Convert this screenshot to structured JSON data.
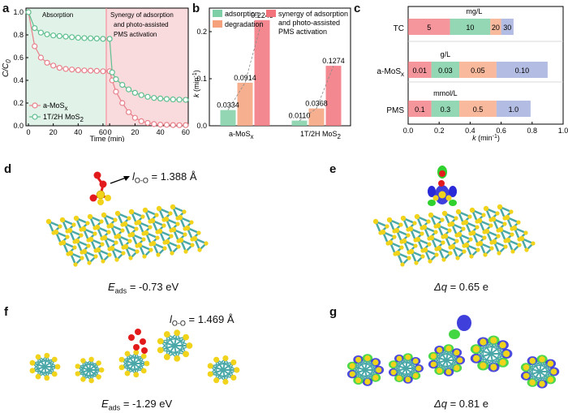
{
  "panels": {
    "a": "a",
    "b": "b",
    "c": "c",
    "d": "d",
    "e": "e",
    "f": "f",
    "g": "g"
  },
  "colors": {
    "green_series": "#5fbf8f",
    "red_series": "#e8808a",
    "green_bg": "#e1f2e8",
    "red_bg": "#f9dadd",
    "adsorption_bar": "#7fcfa6",
    "degradation_bar": "#f5a27c",
    "synergy_bar": "#f2737c",
    "mo_atom": "#4aa8a8",
    "s_atom": "#f2d31b",
    "o_atom": "#e31a1c",
    "charge_pos": "#2fd12f",
    "charge_neg": "#2a2ad8"
  },
  "chart_data": [
    {
      "type": "line",
      "xlabel": "Time (min)",
      "ylabel": "C/C",
      "ylabel_sub": "0",
      "xlim": [
        -2,
        62
      ],
      "ylim": [
        0.0,
        1.0
      ],
      "xticks": [
        "0",
        "20",
        "40",
        "60",
        "0",
        "20",
        "40",
        "60"
      ],
      "yticks": [
        "0.0",
        "0.2",
        "0.4",
        "0.6",
        "0.8",
        "1.0"
      ],
      "regions": [
        "Absorption",
        "Synergy of adsorption and photo-assisted PMS activation"
      ],
      "legend": [
        {
          "name": "a-MoS",
          "sub": "x"
        },
        {
          "name": "1T/2H MoS",
          "sub": "2"
        }
      ],
      "series": [
        {
          "name": "a-MoSx",
          "segment": 1,
          "x": [
            0,
            5,
            10,
            15,
            20,
            25,
            30,
            35,
            40,
            45,
            50,
            55,
            60
          ],
          "y": [
            1.0,
            0.7,
            0.6,
            0.555,
            0.53,
            0.51,
            0.5,
            0.495,
            0.49,
            0.487,
            0.485,
            0.483,
            0.48
          ]
        },
        {
          "name": "1T/2H MoS2",
          "segment": 1,
          "x": [
            0,
            5,
            10,
            15,
            20,
            25,
            30,
            35,
            40,
            45,
            50,
            55,
            60
          ],
          "y": [
            1.0,
            0.86,
            0.82,
            0.805,
            0.795,
            0.79,
            0.785,
            0.78,
            0.775,
            0.772,
            0.77,
            0.768,
            0.765
          ]
        },
        {
          "name": "a-MoSx",
          "segment": 2,
          "x": [
            0,
            2,
            5,
            10,
            15,
            20,
            25,
            30,
            35,
            40,
            45,
            50,
            55,
            60
          ],
          "y": [
            0.48,
            0.4,
            0.3,
            0.2,
            0.12,
            0.07,
            0.04,
            0.025,
            0.015,
            0.01,
            0.008,
            0.006,
            0.005,
            0.005
          ]
        },
        {
          "name": "1T/2H MoS2",
          "segment": 2,
          "x": [
            0,
            2,
            5,
            10,
            15,
            20,
            25,
            30,
            35,
            40,
            45,
            50,
            55,
            60
          ],
          "y": [
            0.765,
            0.47,
            0.41,
            0.36,
            0.32,
            0.29,
            0.27,
            0.255,
            0.245,
            0.24,
            0.235,
            0.232,
            0.23,
            0.228
          ]
        }
      ]
    },
    {
      "type": "bar",
      "ylabel": "k",
      "ylabel_unit": "(min",
      "ylabel_unit_sup": "-1",
      "ylim": [
        0.0,
        0.25
      ],
      "yticks": [
        "0.0",
        "0.1",
        "0.2"
      ],
      "categories": [
        {
          "name": "a-MoS",
          "sub": "x"
        },
        {
          "name": "1T/2H MoS",
          "sub": "2"
        }
      ],
      "legend": [
        "adsorption",
        "degradation",
        "synergy of adsorption and photo-assisted PMS activation"
      ],
      "series": [
        {
          "name": "adsorption",
          "values": [
            0.0334,
            0.011
          ]
        },
        {
          "name": "degradation",
          "values": [
            0.0914,
            0.0368
          ]
        },
        {
          "name": "synergy of adsorption and photo-assisted PMS activation",
          "values": [
            0.2245,
            0.1274
          ]
        }
      ],
      "data_labels": [
        [
          "0.0334",
          "0.0914",
          "0.2245"
        ],
        [
          "0.0110",
          "0.0368",
          "0.1274"
        ]
      ]
    },
    {
      "type": "bar",
      "orientation": "horizontal",
      "xlabel": "k",
      "xlabel_unit": "(min",
      "xlabel_unit_sup": "-1",
      "xlim": [
        0.0,
        1.0
      ],
      "xticks": [
        "0.0",
        "0.2",
        "0.4",
        "0.6",
        "0.8",
        "1.0"
      ],
      "rows": [
        {
          "label": "TC",
          "label_sub": "",
          "unit": "mg/L",
          "segments": [
            {
              "label": "5",
              "start": 0.0,
              "end": 0.27
            },
            {
              "label": "10",
              "start": 0.27,
              "end": 0.53
            },
            {
              "label": "20",
              "start": 0.53,
              "end": 0.6
            },
            {
              "label": "30",
              "start": 0.6,
              "end": 0.68
            }
          ]
        },
        {
          "label": "a-MoS",
          "label_sub": "x",
          "unit": "g/L",
          "segments": [
            {
              "label": "0.01",
              "start": 0.0,
              "end": 0.15
            },
            {
              "label": "0.03",
              "start": 0.15,
              "end": 0.33
            },
            {
              "label": "0.05",
              "start": 0.33,
              "end": 0.57
            },
            {
              "label": "0.10",
              "start": 0.57,
              "end": 0.9
            }
          ]
        },
        {
          "label": "PMS",
          "label_sub": "",
          "unit": "mmol/L",
          "segments": [
            {
              "label": "0.1",
              "start": 0.0,
              "end": 0.15
            },
            {
              "label": "0.3",
              "start": 0.15,
              "end": 0.33
            },
            {
              "label": "0.5",
              "start": 0.33,
              "end": 0.57
            },
            {
              "label": "1.0",
              "start": 0.57,
              "end": 0.79
            }
          ]
        }
      ]
    }
  ],
  "structures": {
    "d": {
      "bond_label": "l",
      "bond_sub": "O-O",
      "bond_value": "= 1.388 Å",
      "energy_label": "E",
      "energy_sub": "ads",
      "energy_value": "= -0.73 eV"
    },
    "e": {
      "charge_label": "Δq",
      "charge_value": "= 0.65 e"
    },
    "f": {
      "bond_label": "l",
      "bond_sub": "O-O",
      "bond_value": "= 1.469 Å",
      "energy_label": "E",
      "energy_sub": "ads",
      "energy_value": "= -1.29 eV"
    },
    "g": {
      "charge_label": "Δq",
      "charge_value": "= 0.81 e"
    }
  }
}
